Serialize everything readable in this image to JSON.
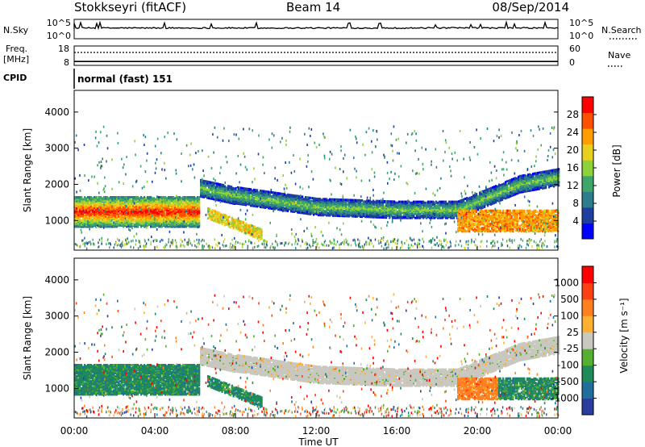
{
  "header": {
    "station": "Stokkseyri (fitACF)",
    "beam": "Beam 14",
    "date": "08/Sep/2014"
  },
  "chart_data": [
    {
      "type": "line",
      "panel": "n-sky",
      "left_label": "N.Sky",
      "right_label": "N.Search",
      "left_ticks": [
        "10^5",
        "10^0"
      ],
      "right_ticks": [
        "10^5",
        "10^0"
      ],
      "style": {
        "line_color": "#000000"
      }
    },
    {
      "type": "line",
      "panel": "frequency",
      "left_label_1": "Freq.",
      "left_label_2": "[MHz]",
      "right_label": "Nave",
      "left_ticks": [
        "18",
        "8"
      ],
      "right_ticks": [
        "60",
        "0"
      ],
      "ylim": [
        8,
        18
      ],
      "freq_value": 10,
      "nave_value": 40
    },
    {
      "type": "text",
      "panel": "cpid",
      "label": "CPID",
      "value": "normal (fast) 151"
    },
    {
      "type": "heatmap",
      "panel": "power",
      "ylabel": "Slant Range [km]",
      "yticks": [
        "4000",
        "3000",
        "2000",
        "1000"
      ],
      "ylim": [
        180,
        4600
      ],
      "xlim_hours": [
        0,
        24
      ],
      "colorbar_title": "Power [dB]",
      "colorbar_ticks": [
        "28",
        "24",
        "20",
        "16",
        "12",
        "8",
        "4"
      ],
      "colorbar_colors": [
        "#0000ff",
        "#1f3fa0",
        "#2e7d8c",
        "#3ea66a",
        "#8fd13a",
        "#e8d020",
        "#ff9c00",
        "#ff5000",
        "#ff0000"
      ]
    },
    {
      "type": "heatmap",
      "panel": "velocity",
      "ylabel": "Slant Range [km]",
      "yticks": [
        "4000",
        "3000",
        "2000",
        "1000"
      ],
      "ylim": [
        180,
        4600
      ],
      "xlim_hours": [
        0,
        24
      ],
      "colorbar_title": "Velocity [m s⁻¹]",
      "colorbar_ticks": [
        "1000",
        "500",
        "100",
        "25",
        "-25",
        "-100",
        "-500",
        "-1000"
      ],
      "colorbar_colors": [
        "#2a3d9c",
        "#1f6e9c",
        "#1f8a5a",
        "#56b030",
        "#c8c8c0",
        "#ffb030",
        "#ff8020",
        "#ff4010",
        "#ff0000"
      ],
      "xticks": [
        "00:00",
        "04:00",
        "08:00",
        "12:00",
        "16:00",
        "20:00",
        "00:00"
      ],
      "xlabel": "Time UT"
    }
  ]
}
